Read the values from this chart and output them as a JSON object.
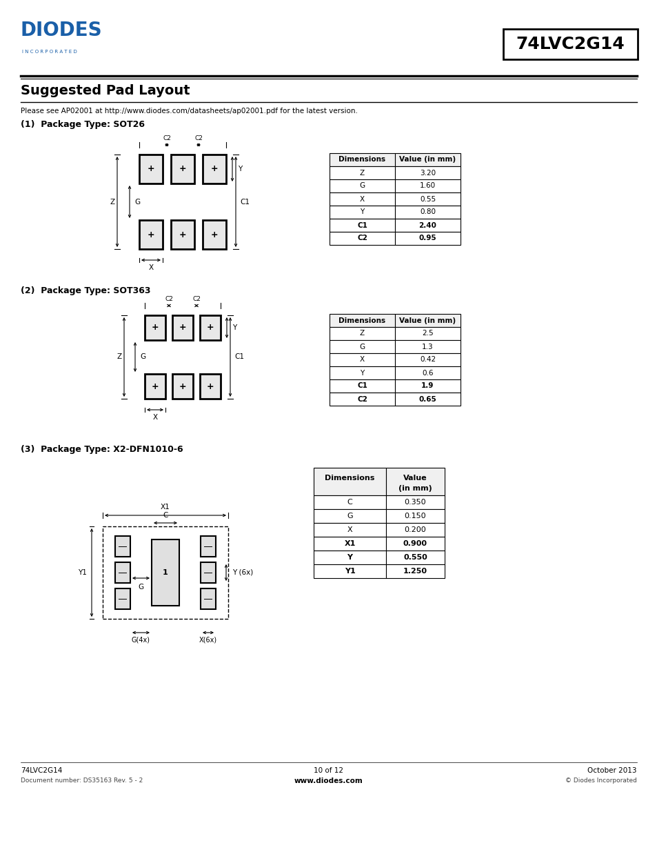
{
  "page_title": "Suggested Pad Layout",
  "subtitle": "Please see AP02001 at http://www.diodes.com/datasheets/ap02001.pdf for the latest version.",
  "part_number": "74LVC2G14",
  "footer_left_line1": "74LVC2G14",
  "footer_left_line2": "Document number: DS35163 Rev. 5 - 2",
  "footer_center_line1": "10 of 12",
  "footer_center_line2": "www.diodes.com",
  "footer_right_line1": "October 2013",
  "footer_right_line2": "© Diodes Incorporated",
  "section1_title": "(1)  Package Type: SOT26",
  "section2_title": "(2)  Package Type: SOT363",
  "section3_title": "(3)  Package Type: X2-DFN1010-6",
  "sot26_rows": [
    [
      "Z",
      "3.20"
    ],
    [
      "G",
      "1.60"
    ],
    [
      "X",
      "0.55"
    ],
    [
      "Y",
      "0.80"
    ],
    [
      "C1",
      "2.40"
    ],
    [
      "C2",
      "0.95"
    ]
  ],
  "sot363_rows": [
    [
      "Z",
      "2.5"
    ],
    [
      "G",
      "1.3"
    ],
    [
      "X",
      "0.42"
    ],
    [
      "Y",
      "0.6"
    ],
    [
      "C1",
      "1.9"
    ],
    [
      "C2",
      "0.65"
    ]
  ],
  "dfn_rows": [
    [
      "C",
      "0.350"
    ],
    [
      "G",
      "0.150"
    ],
    [
      "X",
      "0.200"
    ],
    [
      "X1",
      "0.900"
    ],
    [
      "Y",
      "0.550"
    ],
    [
      "Y1",
      "1.250"
    ]
  ],
  "blue_color": "#1a5fa8",
  "black": "#000000",
  "white": "#ffffff",
  "light_gray": "#f0f0f0"
}
